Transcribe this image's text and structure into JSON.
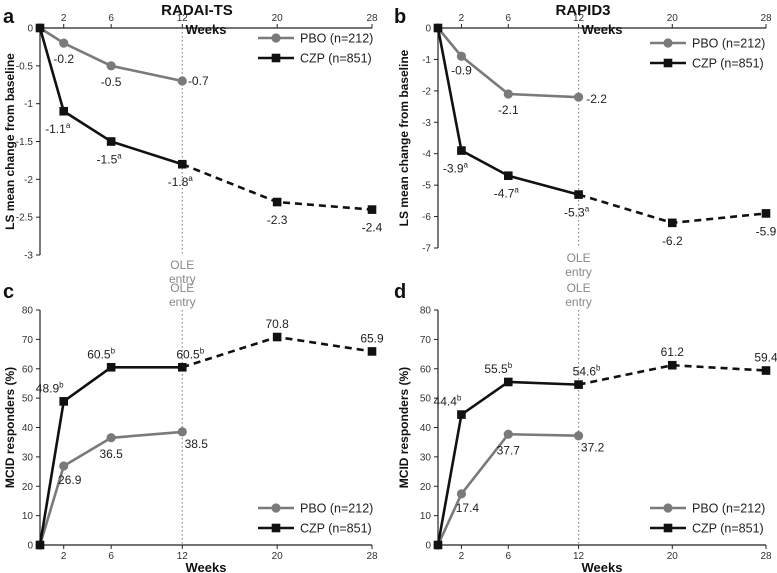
{
  "figure": {
    "panel_titles": [
      "RADAI-TS",
      "RAPID3"
    ],
    "panel_letters": [
      "a",
      "b",
      "c",
      "d"
    ],
    "colors": {
      "pbo": "#7a7a7a",
      "czp": "#111111",
      "vline": "#888888",
      "axis": "#222222",
      "tick": "#333333"
    }
  },
  "chart_data": [
    {
      "panel": "a",
      "type": "line",
      "title": "RADAI-TS",
      "xlabel": "Weeks",
      "xlabel_position": "top",
      "ylabel": "LS mean change from baseline",
      "x_ticks": [
        2,
        6,
        12,
        20,
        28
      ],
      "xlim": [
        0,
        28
      ],
      "y_ticks": [
        "0",
        "-0.5",
        "-1",
        "-1.5",
        "-2",
        "-2.5",
        "-3"
      ],
      "ylim": [
        -3,
        0
      ],
      "ole_label": [
        "OLE",
        "entry"
      ],
      "legend": [
        "PBO (n=212)",
        "CZP (n=851)"
      ],
      "legend_position": "top-right",
      "series": [
        {
          "name": "PBO (n=212)",
          "x": [
            0,
            2,
            6,
            12
          ],
          "values": [
            0,
            -0.2,
            -0.5,
            -0.7
          ],
          "labels": [
            "-0.2",
            "-0.5",
            "-0.7"
          ],
          "label_sup": [
            "",
            "",
            ""
          ]
        },
        {
          "name": "CZP (n=851)",
          "x": [
            0,
            2,
            6,
            12,
            20,
            28
          ],
          "values": [
            0,
            -1.1,
            -1.5,
            -1.8,
            -2.3,
            -2.4
          ],
          "labels": [
            "-1.1",
            "-1.5",
            "-1.8",
            "-2.3",
            "-2.4"
          ],
          "label_sup": [
            "a",
            "a",
            "a",
            "",
            ""
          ]
        }
      ]
    },
    {
      "panel": "b",
      "type": "line",
      "title": "RAPID3",
      "xlabel": "Weeks",
      "xlabel_position": "top",
      "ylabel": "LS mean change from baseline",
      "x_ticks": [
        2,
        6,
        12,
        20,
        28
      ],
      "xlim": [
        0,
        28
      ],
      "y_ticks": [
        "0",
        "-1",
        "-2",
        "-3",
        "-4",
        "-5",
        "-6",
        "-7"
      ],
      "ylim": [
        -7,
        0
      ],
      "ole_label": [
        "OLE",
        "entry"
      ],
      "legend": [
        "PBO (n=212)",
        "CZP (n=851)"
      ],
      "legend_position": "top-right",
      "series": [
        {
          "name": "PBO (n=212)",
          "x": [
            0,
            2,
            6,
            12
          ],
          "values": [
            0,
            -0.9,
            -2.1,
            -2.2
          ],
          "labels": [
            "-0.9",
            "-2.1",
            "-2.2"
          ],
          "label_sup": [
            "",
            "",
            ""
          ]
        },
        {
          "name": "CZP (n=851)",
          "x": [
            0,
            2,
            6,
            12,
            20,
            28
          ],
          "values": [
            0,
            -3.9,
            -4.7,
            -5.3,
            -6.2,
            -5.9
          ],
          "labels": [
            "-3.9",
            "-4.7",
            "-5.3",
            "-6.2",
            "-5.9"
          ],
          "label_sup": [
            "a",
            "a",
            "a",
            "",
            ""
          ]
        }
      ]
    },
    {
      "panel": "c",
      "type": "line",
      "xlabel": "Weeks",
      "xlabel_position": "bottom",
      "ylabel": "MCID responders (%)",
      "x_ticks": [
        2,
        6,
        12,
        20,
        28
      ],
      "xlim": [
        0,
        28
      ],
      "y_ticks": [
        "0",
        "10",
        "20",
        "30",
        "40",
        "50",
        "60",
        "70",
        "80"
      ],
      "ylim": [
        0,
        80
      ],
      "ole_label": [
        "OLE",
        "entry"
      ],
      "legend": [
        "PBO (n=212)",
        "CZP (n=851)"
      ],
      "legend_position": "bottom-right",
      "series": [
        {
          "name": "PBO (n=212)",
          "x": [
            0,
            2,
            6,
            12
          ],
          "values": [
            0,
            26.9,
            36.5,
            38.5
          ],
          "labels": [
            "26.9",
            "36.5",
            "38.5"
          ],
          "label_sup": [
            "",
            "",
            ""
          ]
        },
        {
          "name": "CZP (n=851)",
          "x": [
            0,
            2,
            6,
            12,
            20,
            28
          ],
          "values": [
            0,
            48.9,
            60.5,
            60.5,
            70.8,
            65.9
          ],
          "labels": [
            "48.9",
            "60.5",
            "60.5",
            "70.8",
            "65.9"
          ],
          "label_sup": [
            "b",
            "b",
            "b",
            "",
            ""
          ]
        }
      ]
    },
    {
      "panel": "d",
      "type": "line",
      "xlabel": "Weeks",
      "xlabel_position": "bottom",
      "ylabel": "MCID responders (%)",
      "x_ticks": [
        2,
        6,
        12,
        20,
        28
      ],
      "xlim": [
        0,
        28
      ],
      "y_ticks": [
        "0",
        "10",
        "20",
        "30",
        "40",
        "50",
        "60",
        "70",
        "80"
      ],
      "ylim": [
        0,
        80
      ],
      "ole_label": [
        "OLE",
        "entry"
      ],
      "legend": [
        "PBO (n=212)",
        "CZP (n=851)"
      ],
      "legend_position": "bottom-right",
      "series": [
        {
          "name": "PBO (n=212)",
          "x": [
            0,
            2,
            6,
            12
          ],
          "values": [
            0,
            17.4,
            37.7,
            37.2
          ],
          "labels": [
            "17.4",
            "37.7",
            "37.2"
          ],
          "label_sup": [
            "",
            "",
            ""
          ]
        },
        {
          "name": "CZP (n=851)",
          "x": [
            0,
            2,
            6,
            12,
            20,
            28
          ],
          "values": [
            0,
            44.4,
            55.5,
            54.6,
            61.2,
            59.4
          ],
          "labels": [
            "44.4",
            "55.5",
            "54.6",
            "61.2",
            "59.4"
          ],
          "label_sup": [
            "b",
            "b",
            "b",
            "",
            ""
          ]
        }
      ]
    }
  ]
}
